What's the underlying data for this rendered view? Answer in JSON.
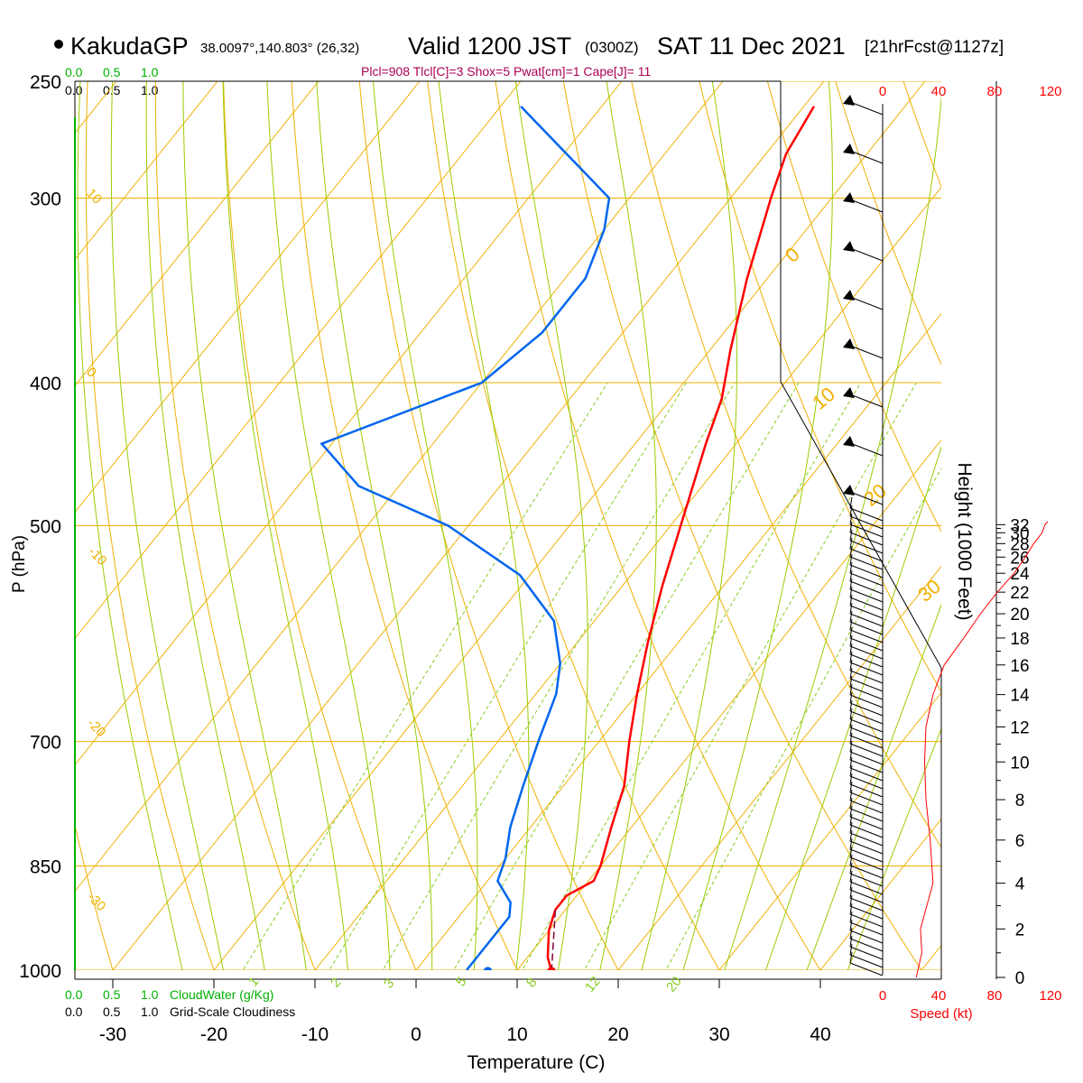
{
  "header": {
    "station": "KakudaGP",
    "coords": "38.0097°,140.803° (26,32)",
    "valid": "Valid 1200 JST",
    "zulu": "(0300Z)",
    "date": "SAT 11 Dec 2021",
    "forecast": "[21hrFcst@1127z]",
    "indices": "Plcl=908 Tlcl[C]=3 Shox=5 Pwat[cm]=1 Cape[J]= 11"
  },
  "colors": {
    "temperature": "#ff0000",
    "dewpoint": "#0066ee",
    "isotherm": "#f0b000",
    "dry_adiabat": "#f0b000",
    "moist_adiabat": "#99cc00",
    "mixing_ratio": "#88cc22",
    "parcel": "#800040",
    "cloud_green": "#00b000",
    "indices": "#aa0055",
    "speed": "#ff0000"
  },
  "top_scale": {
    "green": [
      "0.0",
      "0.5",
      "1.0"
    ],
    "black": [
      "0.0",
      "0.5",
      "1.0"
    ]
  },
  "bottom_scale": {
    "green": [
      "0.0",
      "0.5",
      "1.0"
    ],
    "green_label": "CloudWater (g/Kg)",
    "black": [
      "0.0",
      "0.5",
      "1.0"
    ],
    "black_label": "Grid-Scale Cloudiness"
  },
  "chart_data": {
    "type": "line",
    "title": "",
    "xlabel": "Temperature (C)",
    "ylabel": "P (hPa)",
    "x_ticks": [
      "-30",
      "-20",
      "-10",
      "0",
      "10",
      "20",
      "30",
      "40"
    ],
    "y_ticks": [
      "250",
      "300",
      "400",
      "500",
      "700",
      "850",
      "1000"
    ],
    "y_scale": "log",
    "ylim": [
      250,
      1000
    ],
    "skew_t": true,
    "height_axis": {
      "label": "Height (1000 Feet)",
      "ticks": [
        "0",
        "2",
        "4",
        "6",
        "8",
        "10",
        "12",
        "14",
        "16",
        "18",
        "20",
        "22",
        "24",
        "26",
        "28",
        "30",
        "32"
      ]
    },
    "speed_axis": {
      "label": "Speed (kt)",
      "ticks": [
        "0",
        "40",
        "80",
        "120"
      ]
    },
    "dry_adiabat_labels": [
      "10",
      "0",
      "-10",
      "-20",
      "-30",
      "0",
      "10",
      "20",
      "30"
    ],
    "mixing_ratio_labels": [
      "1",
      "2",
      "3",
      "5",
      "8",
      "12",
      "20"
    ],
    "series": [
      {
        "key": "temperature",
        "p": [
          260,
          280,
          300,
          340,
          380,
          410,
          440,
          500,
          550,
          600,
          650,
          700,
          750,
          800,
          850,
          870,
          890,
          910,
          940,
          980,
          1002
        ],
        "t": [
          -29,
          -28,
          -26,
          -22,
          -18,
          -15,
          -13,
          -9,
          -6,
          -3,
          0,
          3,
          6,
          8,
          10,
          10.5,
          9,
          9,
          10,
          12,
          13.5
        ]
      },
      {
        "key": "dewpoint",
        "p": [
          260,
          300,
          315,
          340,
          370,
          400,
          440,
          470,
          500,
          540,
          580,
          620,
          650,
          700,
          750,
          800,
          840,
          870,
          900,
          920,
          980,
          1000
        ],
        "t": [
          -58,
          -42,
          -40,
          -38,
          -38,
          -40,
          -51,
          -44,
          -32,
          -21,
          -14,
          -10,
          -8,
          -6,
          -4,
          -2,
          0,
          1,
          4,
          5,
          5,
          5
        ]
      },
      {
        "key": "parcel",
        "p": [
          1002,
          960,
          910
        ],
        "t": [
          13.5,
          11.5,
          9
        ]
      }
    ],
    "surface_points": [
      {
        "key": "temperature",
        "p": 1002,
        "t": 13.5
      },
      {
        "key": "dewpoint",
        "p": 1002,
        "t": 7.2
      }
    ],
    "speed_profile": {
      "height_kft": [
        0,
        1,
        2,
        4,
        6,
        8,
        10,
        12,
        14,
        16,
        18,
        20,
        22,
        24,
        26,
        28,
        30,
        32,
        33
      ],
      "speed_kt": [
        24,
        28,
        27,
        36,
        34,
        31,
        30,
        31,
        36,
        44,
        58,
        70,
        82,
        94,
        102,
        108,
        114,
        116,
        118
      ]
    }
  }
}
